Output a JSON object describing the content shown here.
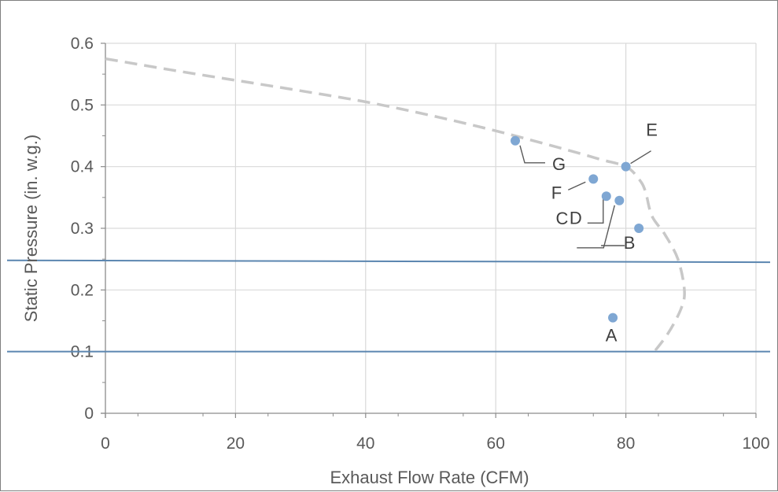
{
  "chart_data": {
    "type": "scatter",
    "title": "",
    "xlabel": "Exhaust Flow Rate (CFM)",
    "ylabel": "Static Pressure (in. w.g.)",
    "xlim": [
      0,
      100
    ],
    "ylim": [
      0,
      0.6
    ],
    "x_ticks": [
      0,
      20,
      40,
      60,
      80,
      100
    ],
    "y_ticks": [
      0,
      0.1,
      0.2,
      0.3,
      0.4,
      0.5,
      0.6
    ],
    "x_tick_labels": [
      "0",
      "20",
      "40",
      "60",
      "80",
      "100"
    ],
    "y_tick_labels": [
      "0",
      "0.1",
      "0.2",
      "0.3",
      "0.4",
      "0.5",
      "0.6"
    ],
    "grid": true,
    "legend": "none",
    "colors": {
      "points": "#7fa7d3",
      "reference_lines": "#5b86b0",
      "curve": "#c8c8c8",
      "grid": "#d9d9d9",
      "axis": "#8c8c8c"
    },
    "points": [
      {
        "label": "A",
        "x": 78,
        "y": 0.155
      },
      {
        "label": "B",
        "x": 82,
        "y": 0.3
      },
      {
        "label": "C",
        "x": 79,
        "y": 0.345
      },
      {
        "label": "D",
        "x": 77,
        "y": 0.352
      },
      {
        "label": "E",
        "x": 80,
        "y": 0.4
      },
      {
        "label": "F",
        "x": 75,
        "y": 0.38
      },
      {
        "label": "G",
        "x": 63,
        "y": 0.442
      }
    ],
    "reference_lines": [
      {
        "y_start": 0.248,
        "y_end": 0.245
      },
      {
        "y_start": 0.1,
        "y_end": 0.1
      }
    ],
    "curve": {
      "style": "dashed",
      "x": [
        0,
        10,
        20,
        30,
        40,
        50,
        60,
        70,
        76,
        80,
        82,
        83,
        84,
        86,
        88,
        89,
        88.5,
        86.5,
        84
      ],
      "y": [
        0.575,
        0.557,
        0.54,
        0.523,
        0.505,
        0.483,
        0.458,
        0.43,
        0.412,
        0.4,
        0.38,
        0.36,
        0.32,
        0.29,
        0.25,
        0.2,
        0.17,
        0.13,
        0.095
      ]
    }
  }
}
